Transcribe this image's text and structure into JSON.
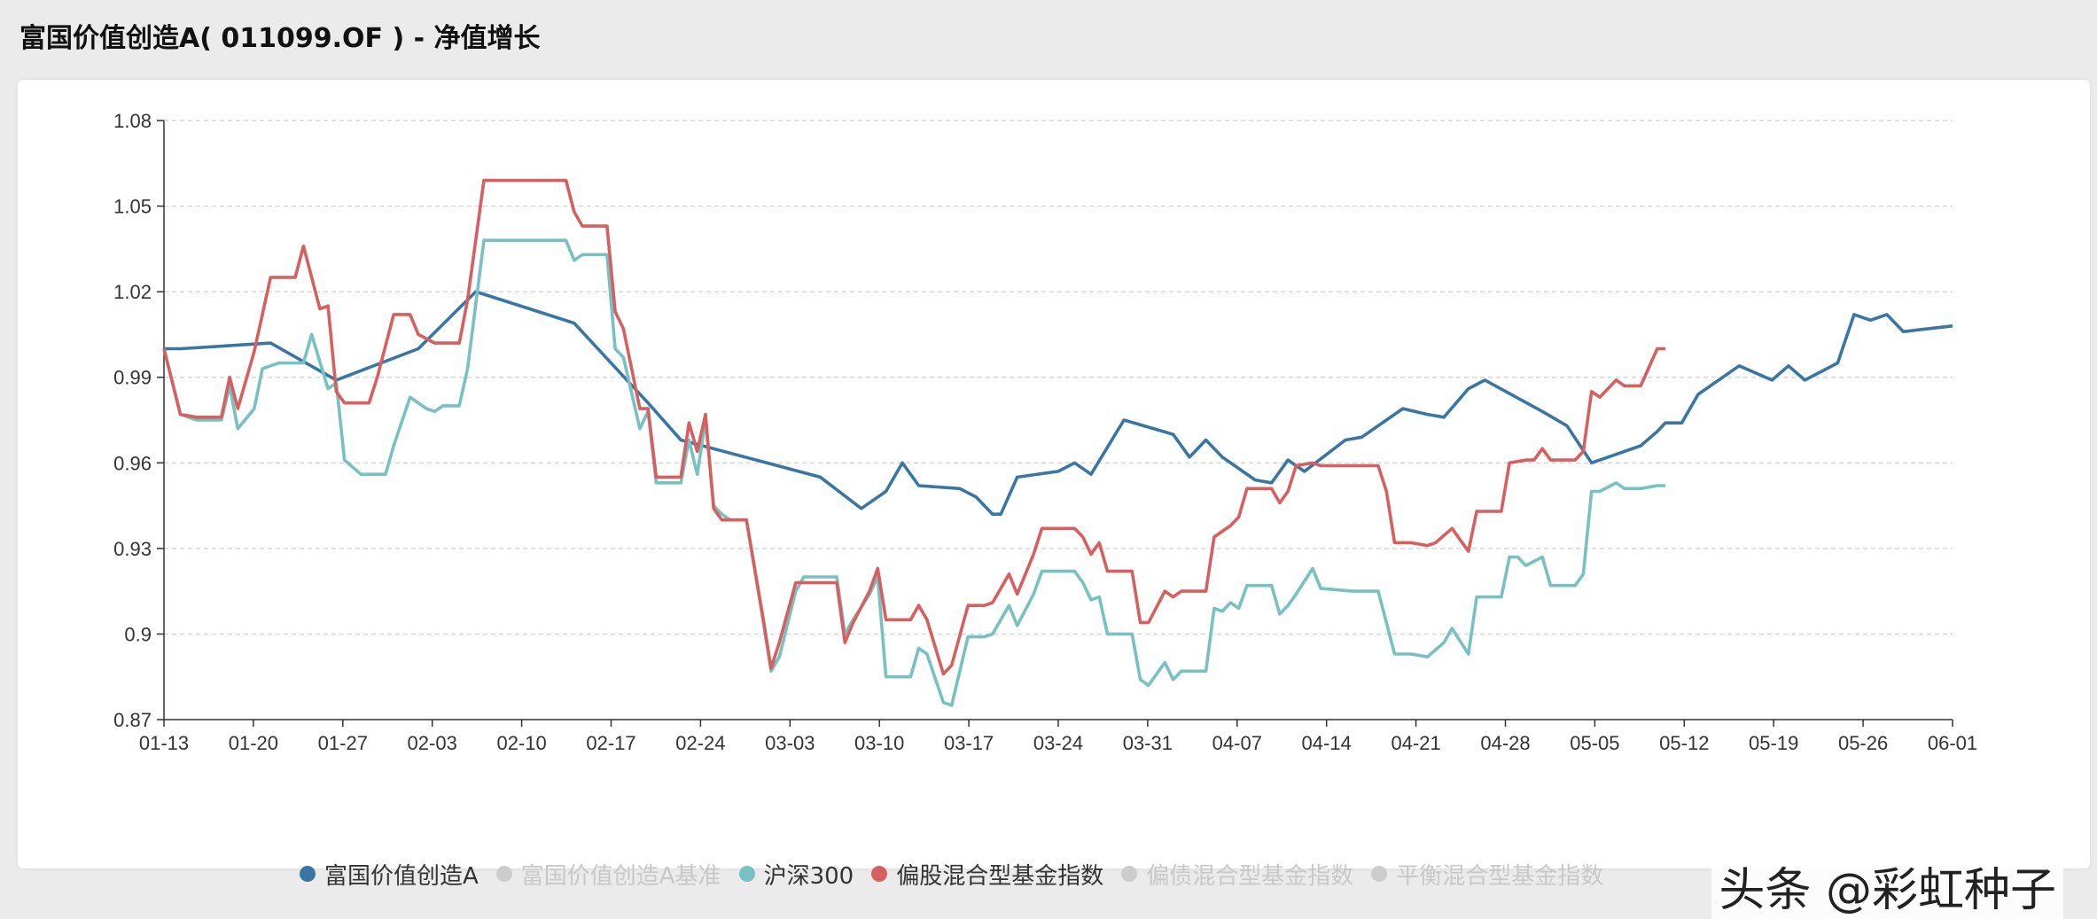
{
  "header": {
    "title": "富国价值创造A( 011099.OF ) - 净值增长"
  },
  "watermark": "头条 @彩虹种子",
  "chart_data": {
    "type": "line",
    "ylim": [
      0.87,
      1.08
    ],
    "yticks": [
      "1.08",
      "1.05",
      "1.02",
      "0.99",
      "0.96",
      "0.93",
      "0.9",
      "0.87"
    ],
    "ytick_values": [
      1.08,
      1.05,
      1.02,
      0.99,
      0.96,
      0.93,
      0.9,
      0.87
    ],
    "xticks": [
      "01-13",
      "01-20",
      "01-27",
      "02-03",
      "02-10",
      "02-17",
      "02-24",
      "03-03",
      "03-10",
      "03-17",
      "03-24",
      "03-31",
      "04-07",
      "04-14",
      "04-21",
      "04-28",
      "05-05",
      "05-12",
      "05-19",
      "05-26",
      "06-01"
    ],
    "grid": true,
    "legend_position": "bottom",
    "legend": [
      {
        "name": "富国价值创造A",
        "color": "#3a76a4",
        "active": true
      },
      {
        "name": "富国价值创造A基准",
        "color": "#cccccc",
        "active": false
      },
      {
        "name": "沪深300",
        "color": "#78c1c3",
        "active": true
      },
      {
        "name": "偏股混合型基金指数",
        "color": "#d75f5f",
        "active": true
      },
      {
        "name": "偏债混合型基金指数",
        "color": "#cccccc",
        "active": false
      },
      {
        "name": "平衡混合型基金指数",
        "color": "#cccccc",
        "active": false
      }
    ],
    "series": [
      {
        "name": "富国价值创造A",
        "color": "#3a76a4",
        "points": [
          [
            0,
            1.0
          ],
          [
            2,
            1.0
          ],
          [
            13,
            1.002
          ],
          [
            21,
            0.989
          ],
          [
            31,
            1.0
          ],
          [
            38,
            1.02
          ],
          [
            50,
            1.009
          ],
          [
            59,
            0.981
          ],
          [
            63,
            0.968
          ],
          [
            80,
            0.955
          ],
          [
            85,
            0.944
          ],
          [
            88,
            0.95
          ],
          [
            90,
            0.96
          ],
          [
            92,
            0.952
          ],
          [
            97,
            0.951
          ],
          [
            99,
            0.948
          ],
          [
            101,
            0.942
          ],
          [
            102,
            0.942
          ],
          [
            104,
            0.955
          ],
          [
            109,
            0.957
          ],
          [
            111,
            0.96
          ],
          [
            113,
            0.956
          ],
          [
            117,
            0.975
          ],
          [
            123,
            0.97
          ],
          [
            125,
            0.962
          ],
          [
            127,
            0.968
          ],
          [
            129,
            0.962
          ],
          [
            133,
            0.954
          ],
          [
            135,
            0.953
          ],
          [
            137,
            0.961
          ],
          [
            139,
            0.957
          ],
          [
            144,
            0.968
          ],
          [
            146,
            0.969
          ],
          [
            148,
            0.973
          ],
          [
            151,
            0.979
          ],
          [
            154,
            0.977
          ],
          [
            156,
            0.976
          ],
          [
            159,
            0.986
          ],
          [
            161,
            0.989
          ],
          [
            168,
            0.978
          ],
          [
            171,
            0.973
          ],
          [
            174,
            0.96
          ],
          [
            180,
            0.966
          ],
          [
            182,
            0.971
          ],
          [
            183,
            0.974
          ],
          [
            185,
            0.974
          ],
          [
            187,
            0.984
          ],
          [
            192,
            0.994
          ],
          [
            196,
            0.989
          ],
          [
            198,
            0.994
          ],
          [
            200,
            0.989
          ],
          [
            204,
            0.995
          ],
          [
            206,
            1.012
          ],
          [
            208,
            1.01
          ],
          [
            210,
            1.012
          ],
          [
            212,
            1.006
          ],
          [
            218,
            1.008
          ]
        ]
      },
      {
        "name": "沪深300",
        "color": "#78c1c3",
        "points": [
          [
            0,
            1.0
          ],
          [
            2,
            0.977
          ],
          [
            4,
            0.975
          ],
          [
            6,
            0.975
          ],
          [
            7,
            0.975
          ],
          [
            8,
            0.987
          ],
          [
            9,
            0.972
          ],
          [
            11,
            0.979
          ],
          [
            12,
            0.993
          ],
          [
            14,
            0.995
          ],
          [
            16,
            0.995
          ],
          [
            17,
            0.995
          ],
          [
            18,
            1.005
          ],
          [
            20,
            0.986
          ],
          [
            21,
            0.988
          ],
          [
            22,
            0.961
          ],
          [
            24,
            0.956
          ],
          [
            26,
            0.956
          ],
          [
            27,
            0.956
          ],
          [
            28,
            0.966
          ],
          [
            30,
            0.983
          ],
          [
            32,
            0.979
          ],
          [
            33,
            0.978
          ],
          [
            34,
            0.98
          ],
          [
            36,
            0.98
          ],
          [
            37,
            0.993
          ],
          [
            39,
            1.038
          ],
          [
            49,
            1.038
          ],
          [
            50,
            1.031
          ],
          [
            51,
            1.033
          ],
          [
            53,
            1.033
          ],
          [
            54,
            1.033
          ],
          [
            55,
            1.0
          ],
          [
            56,
            0.997
          ],
          [
            58,
            0.972
          ],
          [
            59,
            0.978
          ],
          [
            60,
            0.953
          ],
          [
            63,
            0.953
          ],
          [
            64,
            0.968
          ],
          [
            65,
            0.956
          ],
          [
            66,
            0.975
          ],
          [
            67,
            0.945
          ],
          [
            68,
            0.942
          ],
          [
            69,
            0.94
          ],
          [
            70,
            0.94
          ],
          [
            71,
            0.94
          ],
          [
            73,
            0.905
          ],
          [
            74,
            0.887
          ],
          [
            75,
            0.892
          ],
          [
            77,
            0.915
          ],
          [
            78,
            0.92
          ],
          [
            80,
            0.92
          ],
          [
            82,
            0.92
          ],
          [
            83,
            0.9
          ],
          [
            84,
            0.905
          ],
          [
            86,
            0.914
          ],
          [
            87,
            0.92
          ],
          [
            88,
            0.885
          ],
          [
            90,
            0.885
          ],
          [
            91,
            0.885
          ],
          [
            92,
            0.895
          ],
          [
            93,
            0.893
          ],
          [
            95,
            0.876
          ],
          [
            96,
            0.875
          ],
          [
            98,
            0.899
          ],
          [
            100,
            0.899
          ],
          [
            101,
            0.9
          ],
          [
            103,
            0.91
          ],
          [
            104,
            0.903
          ],
          [
            106,
            0.914
          ],
          [
            107,
            0.922
          ],
          [
            111,
            0.922
          ],
          [
            112,
            0.918
          ],
          [
            113,
            0.912
          ],
          [
            114,
            0.913
          ],
          [
            115,
            0.9
          ],
          [
            118,
            0.9
          ],
          [
            119,
            0.884
          ],
          [
            120,
            0.882
          ],
          [
            122,
            0.89
          ],
          [
            123,
            0.884
          ],
          [
            124,
            0.887
          ],
          [
            126,
            0.887
          ],
          [
            127,
            0.887
          ],
          [
            128,
            0.909
          ],
          [
            129,
            0.908
          ],
          [
            130,
            0.911
          ],
          [
            131,
            0.909
          ],
          [
            132,
            0.917
          ],
          [
            135,
            0.917
          ],
          [
            136,
            0.907
          ],
          [
            137,
            0.91
          ],
          [
            138,
            0.914
          ],
          [
            140,
            0.923
          ],
          [
            141,
            0.916
          ],
          [
            145,
            0.915
          ],
          [
            147,
            0.915
          ],
          [
            148,
            0.915
          ],
          [
            150,
            0.893
          ],
          [
            152,
            0.893
          ],
          [
            154,
            0.892
          ],
          [
            156,
            0.897
          ],
          [
            157,
            0.902
          ],
          [
            159,
            0.893
          ],
          [
            160,
            0.913
          ],
          [
            162,
            0.913
          ],
          [
            163,
            0.913
          ],
          [
            164,
            0.927
          ],
          [
            165,
            0.927
          ],
          [
            166,
            0.924
          ],
          [
            168,
            0.927
          ],
          [
            169,
            0.917
          ],
          [
            171,
            0.917
          ],
          [
            172,
            0.917
          ],
          [
            173,
            0.921
          ],
          [
            174,
            0.95
          ],
          [
            175,
            0.95
          ],
          [
            177,
            0.953
          ],
          [
            178,
            0.951
          ],
          [
            180,
            0.951
          ],
          [
            182,
            0.952
          ],
          [
            183,
            0.952
          ]
        ]
      },
      {
        "name": "偏股混合型基金指数",
        "color": "#d75f5f",
        "points": [
          [
            0,
            1.0
          ],
          [
            2,
            0.977
          ],
          [
            4,
            0.976
          ],
          [
            6,
            0.976
          ],
          [
            7,
            0.976
          ],
          [
            8,
            0.99
          ],
          [
            9,
            0.979
          ],
          [
            11,
            0.999
          ],
          [
            13,
            1.025
          ],
          [
            15,
            1.025
          ],
          [
            16,
            1.025
          ],
          [
            17,
            1.036
          ],
          [
            19,
            1.014
          ],
          [
            20,
            1.015
          ],
          [
            21,
            0.985
          ],
          [
            22,
            0.981
          ],
          [
            24,
            0.981
          ],
          [
            25,
            0.981
          ],
          [
            26,
            0.99
          ],
          [
            28,
            1.012
          ],
          [
            30,
            1.012
          ],
          [
            31,
            1.005
          ],
          [
            33,
            1.002
          ],
          [
            35,
            1.002
          ],
          [
            36,
            1.002
          ],
          [
            37,
            1.017
          ],
          [
            39,
            1.059
          ],
          [
            49,
            1.059
          ],
          [
            50,
            1.048
          ],
          [
            51,
            1.043
          ],
          [
            53,
            1.043
          ],
          [
            54,
            1.043
          ],
          [
            55,
            1.013
          ],
          [
            56,
            1.007
          ],
          [
            58,
            0.979
          ],
          [
            59,
            0.979
          ],
          [
            60,
            0.955
          ],
          [
            63,
            0.955
          ],
          [
            64,
            0.974
          ],
          [
            65,
            0.964
          ],
          [
            66,
            0.977
          ],
          [
            67,
            0.944
          ],
          [
            68,
            0.94
          ],
          [
            69,
            0.94
          ],
          [
            71,
            0.94
          ],
          [
            73,
            0.906
          ],
          [
            74,
            0.888
          ],
          [
            75,
            0.897
          ],
          [
            77,
            0.918
          ],
          [
            78,
            0.918
          ],
          [
            80,
            0.918
          ],
          [
            82,
            0.918
          ],
          [
            83,
            0.897
          ],
          [
            84,
            0.904
          ],
          [
            86,
            0.915
          ],
          [
            87,
            0.923
          ],
          [
            88,
            0.905
          ],
          [
            90,
            0.905
          ],
          [
            91,
            0.905
          ],
          [
            92,
            0.91
          ],
          [
            93,
            0.905
          ],
          [
            95,
            0.886
          ],
          [
            96,
            0.889
          ],
          [
            98,
            0.91
          ],
          [
            100,
            0.91
          ],
          [
            101,
            0.911
          ],
          [
            103,
            0.921
          ],
          [
            104,
            0.914
          ],
          [
            106,
            0.928
          ],
          [
            107,
            0.937
          ],
          [
            111,
            0.937
          ],
          [
            112,
            0.934
          ],
          [
            113,
            0.928
          ],
          [
            114,
            0.932
          ],
          [
            115,
            0.922
          ],
          [
            118,
            0.922
          ],
          [
            119,
            0.904
          ],
          [
            120,
            0.904
          ],
          [
            122,
            0.915
          ],
          [
            123,
            0.913
          ],
          [
            124,
            0.915
          ],
          [
            126,
            0.915
          ],
          [
            127,
            0.915
          ],
          [
            128,
            0.934
          ],
          [
            129,
            0.936
          ],
          [
            130,
            0.938
          ],
          [
            131,
            0.941
          ],
          [
            132,
            0.951
          ],
          [
            135,
            0.951
          ],
          [
            136,
            0.946
          ],
          [
            137,
            0.95
          ],
          [
            138,
            0.959
          ],
          [
            140,
            0.96
          ],
          [
            141,
            0.959
          ],
          [
            145,
            0.959
          ],
          [
            147,
            0.959
          ],
          [
            148,
            0.959
          ],
          [
            149,
            0.95
          ],
          [
            150,
            0.932
          ],
          [
            152,
            0.932
          ],
          [
            154,
            0.931
          ],
          [
            155,
            0.932
          ],
          [
            157,
            0.937
          ],
          [
            159,
            0.929
          ],
          [
            160,
            0.943
          ],
          [
            162,
            0.943
          ],
          [
            163,
            0.943
          ],
          [
            164,
            0.96
          ],
          [
            166,
            0.961
          ],
          [
            167,
            0.961
          ],
          [
            168,
            0.965
          ],
          [
            169,
            0.961
          ],
          [
            171,
            0.961
          ],
          [
            172,
            0.961
          ],
          [
            173,
            0.964
          ],
          [
            174,
            0.985
          ],
          [
            175,
            0.983
          ],
          [
            177,
            0.989
          ],
          [
            178,
            0.987
          ],
          [
            180,
            0.987
          ],
          [
            182,
            1.0
          ],
          [
            183,
            1.0
          ]
        ]
      }
    ]
  }
}
